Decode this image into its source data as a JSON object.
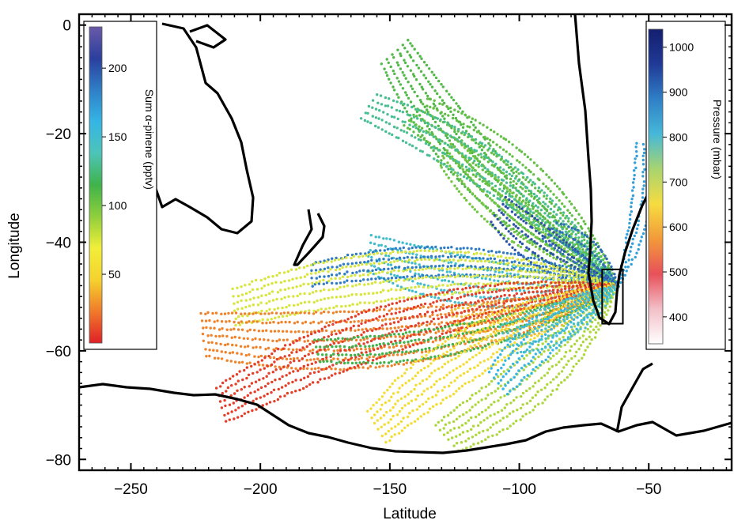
{
  "chart_data": {
    "type": "scatter",
    "title": "",
    "xlabel": "Latitude",
    "ylabel": "Longitude",
    "xlim": [
      -270,
      -18
    ],
    "ylim": [
      -82,
      2
    ],
    "x_ticks": [
      -250,
      -200,
      -150,
      -100,
      -50
    ],
    "y_ticks": [
      0,
      -20,
      -40,
      -60,
      -80
    ],
    "grid": false,
    "colorbars": [
      {
        "label": "Sum α-pinene (pptv)",
        "ticks": [
          50,
          100,
          150,
          200
        ],
        "range": [
          0,
          230
        ],
        "placement": "left-inside",
        "colormap": [
          "#e02028",
          "#f07a2a",
          "#f5d22e",
          "#f2ee3a",
          "#8fcf3c",
          "#3fb34a",
          "#4dc4b8",
          "#35b5e5",
          "#2f7fc7",
          "#2a3f9e",
          "#6a5aa8"
        ]
      },
      {
        "label": "Pressure (mbar)",
        "ticks": [
          400,
          500,
          600,
          700,
          800,
          900,
          1000
        ],
        "range": [
          340,
          1040
        ],
        "placement": "right-inside",
        "colormap": [
          "#ffffff",
          "#f2bfc8",
          "#e8505a",
          "#f29a3a",
          "#f6dc40",
          "#a8d470",
          "#46b8d8",
          "#2f7fc7",
          "#203a96",
          "#141e6e"
        ]
      }
    ],
    "marked_region": {
      "x": [
        -68,
        -60
      ],
      "y": [
        -55,
        -45
      ]
    },
    "trajectory_bundles": [
      {
        "start": [
          -62,
          -48
        ],
        "end": [
          -148,
          -5
        ],
        "value": 110,
        "paths": 6
      },
      {
        "start": [
          -62,
          -48
        ],
        "end": [
          -140,
          -16
        ],
        "value": 105,
        "paths": 6
      },
      {
        "start": [
          -62,
          -48
        ],
        "end": [
          -128,
          -23
        ],
        "value": 100,
        "paths": 5
      },
      {
        "start": [
          -62,
          -48
        ],
        "end": [
          -158,
          -15
        ],
        "value": 130,
        "paths": 5
      },
      {
        "start": [
          -62,
          -48
        ],
        "end": [
          -108,
          -34
        ],
        "value": 200,
        "paths": 5
      },
      {
        "start": [
          -62,
          -48
        ],
        "end": [
          -88,
          -38
        ],
        "value": 190,
        "paths": 4
      },
      {
        "start": [
          -62,
          -48
        ],
        "end": [
          -158,
          -42
        ],
        "value": 150,
        "paths": 6
      },
      {
        "start": [
          -62,
          -48
        ],
        "end": [
          -180,
          -46
        ],
        "value": 185,
        "paths": 4
      },
      {
        "start": [
          -62,
          -48
        ],
        "end": [
          -125,
          -55
        ],
        "value": 40,
        "paths": 5
      },
      {
        "start": [
          -62,
          -48
        ],
        "end": [
          -210,
          -52
        ],
        "value": 75,
        "paths": 6
      },
      {
        "start": [
          -62,
          -48
        ],
        "end": [
          -222,
          -57
        ],
        "value": 25,
        "paths": 7
      },
      {
        "start": [
          -62,
          -48
        ],
        "end": [
          -215,
          -70
        ],
        "value": 8,
        "paths": 6
      },
      {
        "start": [
          -62,
          -48
        ],
        "end": [
          -178,
          -60
        ],
        "value": 115,
        "paths": 4
      },
      {
        "start": [
          -62,
          -48
        ],
        "end": [
          -155,
          -74
        ],
        "value": 55,
        "paths": 6
      },
      {
        "start": [
          -62,
          -48
        ],
        "end": [
          -128,
          -76
        ],
        "value": 85,
        "paths": 6
      },
      {
        "start": [
          -62,
          -48
        ],
        "end": [
          -108,
          -66
        ],
        "value": 160,
        "paths": 5
      },
      {
        "start": [
          -62,
          -48
        ],
        "end": [
          -105,
          -58
        ],
        "value": 145,
        "paths": 5
      },
      {
        "start": [
          -62,
          -48
        ],
        "end": [
          -52,
          -22
        ],
        "value": 170,
        "paths": 3
      }
    ]
  }
}
